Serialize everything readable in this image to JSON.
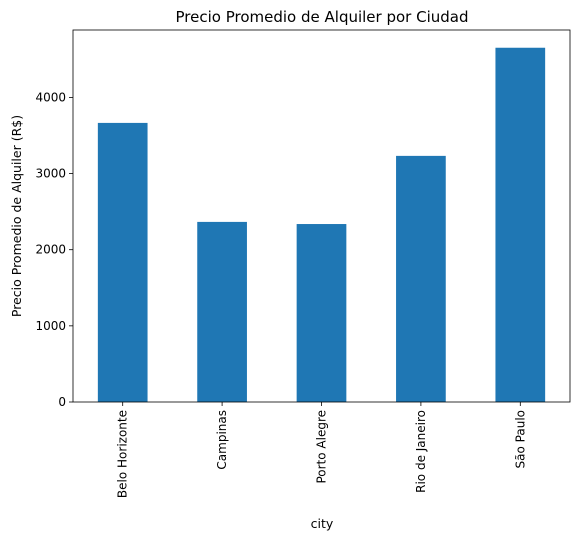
{
  "chart_data": {
    "type": "bar",
    "title": "Precio Promedio de Alquiler por Ciudad",
    "xlabel": "city",
    "ylabel": "Precio Promedio de Alquiler (R$)",
    "categories": [
      "Belo Horizonte",
      "Campinas",
      "Porto Alegre",
      "Rio de Janeiro",
      "São Paulo"
    ],
    "values": [
      3665,
      2365,
      2337,
      3232,
      4652
    ],
    "ylim": [
      0,
      4885
    ],
    "yticks": [
      0,
      1000,
      2000,
      3000,
      4000
    ],
    "ytick_labels": [
      "0",
      "1000",
      "2000",
      "3000",
      "4000"
    ],
    "grid": false,
    "bar_color": "#1f77b4"
  }
}
